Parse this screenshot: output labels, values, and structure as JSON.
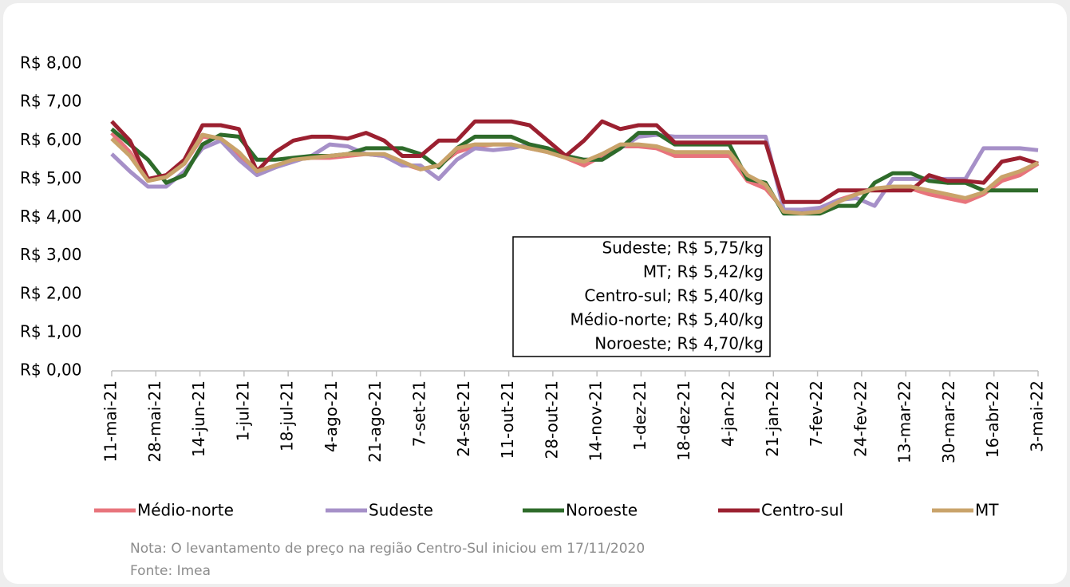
{
  "chart_data": {
    "type": "line",
    "x": [
      "2021-05-11",
      "2021-05-18",
      "2021-05-25",
      "2021-06-01",
      "2021-06-08",
      "2021-06-15",
      "2021-06-22",
      "2021-06-29",
      "2021-07-06",
      "2021-07-13",
      "2021-07-20",
      "2021-07-27",
      "2021-08-03",
      "2021-08-10",
      "2021-08-17",
      "2021-08-24",
      "2021-08-31",
      "2021-09-07",
      "2021-09-14",
      "2021-09-21",
      "2021-09-28",
      "2021-10-05",
      "2021-10-12",
      "2021-10-19",
      "2021-10-26",
      "2021-11-02",
      "2021-11-09",
      "2021-11-16",
      "2021-11-23",
      "2021-11-30",
      "2021-12-07",
      "2021-12-14",
      "2021-12-21",
      "2021-12-28",
      "2022-01-04",
      "2022-01-11",
      "2022-01-18",
      "2022-01-25",
      "2022-02-01",
      "2022-02-08",
      "2022-02-15",
      "2022-02-22",
      "2022-03-01",
      "2022-03-08",
      "2022-03-15",
      "2022-03-22",
      "2022-03-29",
      "2022-04-05",
      "2022-04-12",
      "2022-04-19",
      "2022-04-26",
      "2022-05-03"
    ],
    "series": [
      {
        "name": "Médio-norte",
        "color": "#e8747c",
        "values": [
          6.2,
          5.7,
          5.0,
          5.05,
          5.4,
          6.1,
          6.05,
          5.6,
          5.15,
          5.3,
          5.5,
          5.55,
          5.55,
          5.6,
          5.65,
          5.6,
          5.4,
          5.25,
          5.35,
          5.7,
          5.85,
          5.9,
          5.9,
          5.8,
          5.7,
          5.55,
          5.35,
          5.6,
          5.85,
          5.85,
          5.8,
          5.6,
          5.6,
          5.6,
          5.6,
          4.95,
          4.75,
          4.2,
          4.15,
          4.25,
          4.45,
          4.6,
          4.75,
          4.75,
          4.75,
          4.6,
          4.5,
          4.4,
          4.6,
          4.95,
          5.1,
          5.4
        ]
      },
      {
        "name": "Sudeste",
        "color": "#a690c8",
        "values": [
          5.65,
          5.2,
          4.8,
          4.8,
          5.2,
          5.8,
          6.0,
          5.5,
          5.1,
          5.3,
          5.45,
          5.6,
          5.9,
          5.85,
          5.65,
          5.6,
          5.35,
          5.35,
          5.0,
          5.5,
          5.8,
          5.75,
          5.8,
          5.9,
          5.8,
          5.6,
          5.5,
          5.5,
          5.8,
          6.1,
          6.15,
          6.1,
          6.1,
          6.1,
          6.1,
          6.1,
          6.1,
          4.2,
          4.2,
          4.25,
          4.45,
          4.5,
          4.3,
          5.0,
          5.0,
          5.0,
          5.0,
          5.0,
          5.8,
          5.8,
          5.8,
          5.75
        ]
      },
      {
        "name": "Noroeste",
        "color": "#2e6b2a",
        "values": [
          6.3,
          5.9,
          5.5,
          4.9,
          5.1,
          5.9,
          6.15,
          6.1,
          5.5,
          5.5,
          5.55,
          5.6,
          5.6,
          5.65,
          5.8,
          5.8,
          5.8,
          5.65,
          5.3,
          5.8,
          6.1,
          6.1,
          6.1,
          5.9,
          5.8,
          5.6,
          5.5,
          5.5,
          5.8,
          6.2,
          6.2,
          5.9,
          5.9,
          5.9,
          5.9,
          5.0,
          4.9,
          4.1,
          4.1,
          4.1,
          4.3,
          4.3,
          4.9,
          5.15,
          5.15,
          4.95,
          4.9,
          4.9,
          4.7,
          4.7,
          4.7,
          4.7
        ]
      },
      {
        "name": "Centro-sul",
        "color": "#9b2030",
        "values": [
          6.5,
          6.0,
          5.0,
          5.1,
          5.5,
          6.4,
          6.4,
          6.3,
          5.2,
          5.7,
          6.0,
          6.1,
          6.1,
          6.05,
          6.2,
          6.0,
          5.6,
          5.6,
          6.0,
          6.0,
          6.5,
          6.5,
          6.5,
          6.4,
          6.0,
          5.6,
          6.0,
          6.5,
          6.3,
          6.4,
          6.4,
          5.95,
          5.95,
          5.95,
          5.95,
          5.95,
          5.95,
          4.4,
          4.4,
          4.4,
          4.7,
          4.7,
          4.7,
          4.7,
          4.7,
          5.1,
          4.95,
          4.95,
          4.9,
          5.45,
          5.55,
          5.4
        ]
      },
      {
        "name": "MT",
        "color": "#c9a36a",
        "values": [
          6.05,
          5.6,
          4.95,
          5.05,
          5.4,
          6.15,
          6.05,
          5.7,
          5.2,
          5.35,
          5.5,
          5.55,
          5.6,
          5.65,
          5.65,
          5.65,
          5.45,
          5.25,
          5.35,
          5.8,
          5.9,
          5.9,
          5.9,
          5.8,
          5.7,
          5.55,
          5.45,
          5.65,
          5.9,
          5.9,
          5.85,
          5.7,
          5.7,
          5.7,
          5.7,
          5.1,
          4.85,
          4.15,
          4.1,
          4.15,
          4.4,
          4.6,
          4.75,
          4.8,
          4.8,
          4.7,
          4.6,
          4.5,
          4.65,
          5.05,
          5.2,
          5.42
        ]
      }
    ],
    "xlim": [
      "2021-05-11",
      "2022-05-03"
    ],
    "xticks": [
      {
        "value": "2021-05-11",
        "label": "11-mai-21"
      },
      {
        "value": "2021-05-28",
        "label": "28-mai-21"
      },
      {
        "value": "2021-06-14",
        "label": "14-jun-21"
      },
      {
        "value": "2021-07-01",
        "label": "1-jul-21"
      },
      {
        "value": "2021-07-18",
        "label": "18-jul-21"
      },
      {
        "value": "2021-08-04",
        "label": "4-ago-21"
      },
      {
        "value": "2021-08-21",
        "label": "21-ago-21"
      },
      {
        "value": "2021-09-07",
        "label": "7-set-21"
      },
      {
        "value": "2021-09-24",
        "label": "24-set-21"
      },
      {
        "value": "2021-10-11",
        "label": "11-out-21"
      },
      {
        "value": "2021-10-28",
        "label": "28-out-21"
      },
      {
        "value": "2021-11-14",
        "label": "14-nov-21"
      },
      {
        "value": "2021-12-01",
        "label": "1-dez-21"
      },
      {
        "value": "2021-12-18",
        "label": "18-dez-21"
      },
      {
        "value": "2022-01-04",
        "label": "4-jan-22"
      },
      {
        "value": "2022-01-21",
        "label": "21-jan-22"
      },
      {
        "value": "2022-02-07",
        "label": "7-fev-22"
      },
      {
        "value": "2022-02-24",
        "label": "24-fev-22"
      },
      {
        "value": "2022-03-13",
        "label": "13-mar-22"
      },
      {
        "value": "2022-03-30",
        "label": "30-mar-22"
      },
      {
        "value": "2022-04-16",
        "label": "16-abr-22"
      },
      {
        "value": "2022-05-03",
        "label": "3-mai-22"
      }
    ],
    "ylim": [
      0,
      8
    ],
    "yticks": [
      {
        "value": 0,
        "label": "R$ 0,00"
      },
      {
        "value": 1,
        "label": "R$ 1,00"
      },
      {
        "value": 2,
        "label": "R$ 2,00"
      },
      {
        "value": 3,
        "label": "R$ 3,00"
      },
      {
        "value": 4,
        "label": "R$ 4,00"
      },
      {
        "value": 5,
        "label": "R$ 5,00"
      },
      {
        "value": 6,
        "label": "R$ 6,00"
      },
      {
        "value": 7,
        "label": "R$ 7,00"
      },
      {
        "value": 8,
        "label": "R$ 8,00"
      }
    ],
    "grid": false,
    "legend": "bottom",
    "annotations": [
      "Sudeste; R$ 5,75/kg",
      "MT; R$ 5,42/kg",
      "Centro-sul; R$ 5,40/kg",
      "Médio-norte; R$ 5,40/kg",
      "Noroeste; R$ 4,70/kg"
    ],
    "notes": [
      "Nota: O levantamento de preço na região Centro-Sul iniciou em 17/11/2020",
      "Fonte: Imea"
    ]
  }
}
